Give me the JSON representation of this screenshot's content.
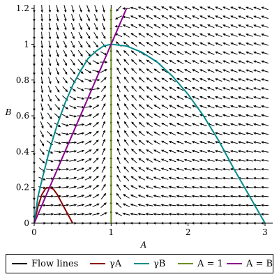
{
  "chart_data": {
    "type": "line",
    "title": "",
    "xlabel": "A",
    "ylabel": "B",
    "xlim": [
      0,
      3.1
    ],
    "ylim": [
      0,
      1.22
    ],
    "x_ticks": [
      "0",
      "1",
      "2",
      "3"
    ],
    "y_ticks": [
      "0",
      "0.2",
      "0.4",
      "0.6",
      "0.8",
      "1",
      "1.2"
    ],
    "vector_field": {
      "description": "direction field, arrows converge toward (1,1)",
      "x_step": 0.1,
      "y_step": 0.05
    },
    "series": [
      {
        "name": "Flow lines",
        "color": "#000000",
        "x": [],
        "y": []
      },
      {
        "name": "γA",
        "color": "#8b0000",
        "x": [
          0,
          0.05,
          0.1,
          0.15,
          0.2,
          0.25,
          0.3,
          0.35,
          0.4,
          0.45,
          0.5
        ],
        "y": [
          0,
          0.095,
          0.16,
          0.195,
          0.2,
          0.19,
          0.16,
          0.12,
          0.08,
          0.04,
          0
        ]
      },
      {
        "name": "γB",
        "color": "#008b8b",
        "x": [
          0,
          0.05,
          0.1,
          0.2,
          0.3,
          0.4,
          0.5,
          0.6,
          0.7,
          0.8,
          0.9,
          1.0,
          1.2,
          1.4,
          1.6,
          1.8,
          2.0,
          2.2,
          2.4,
          2.6,
          2.8,
          3.0
        ],
        "y": [
          0,
          0.15,
          0.24,
          0.41,
          0.55,
          0.67,
          0.77,
          0.85,
          0.92,
          0.96,
          0.99,
          1.0,
          0.99,
          0.955,
          0.9,
          0.82,
          0.72,
          0.6,
          0.46,
          0.3,
          0.15,
          0
        ]
      },
      {
        "name": "A = 1",
        "color": "#6b8e23",
        "x": [
          1,
          1
        ],
        "y": [
          0,
          1.2
        ]
      },
      {
        "name": "A = B",
        "color": "#8b008b",
        "x": [
          0,
          1.2
        ],
        "y": [
          0,
          1.2
        ]
      }
    ],
    "legend": {
      "placement": "bottom",
      "entries": [
        {
          "label": "Flow lines",
          "color": "#000000"
        },
        {
          "label": "γA",
          "color": "#8b0000"
        },
        {
          "label": "γB",
          "color": "#008b8b"
        },
        {
          "label": "A = 1",
          "color": "#6b8e23"
        },
        {
          "label": "A = B",
          "color": "#8b008b"
        }
      ]
    }
  }
}
